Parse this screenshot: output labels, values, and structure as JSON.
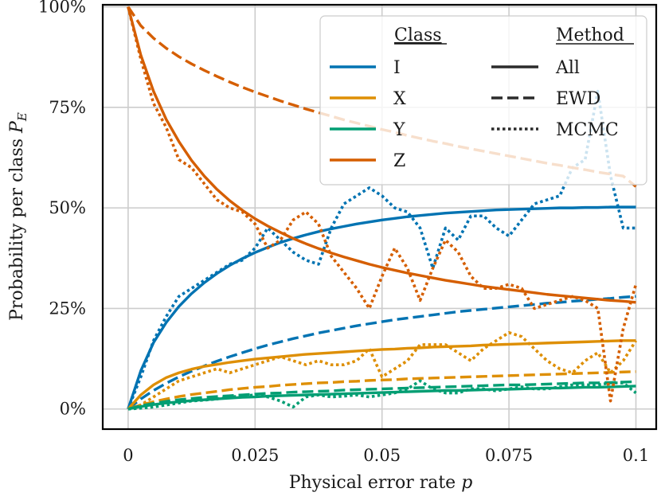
{
  "chart_data": {
    "type": "line",
    "xlabel_text": "Physical error rate ",
    "xlabel_var": "p",
    "ylabel_text": "Probability per class ",
    "ylabel_var": "P",
    "ylabel_sub": "E",
    "xlim": [
      -0.005,
      0.104
    ],
    "ylim": [
      -5,
      100.5
    ],
    "x_ticks": [
      0,
      0.025,
      0.05,
      0.075,
      0.1
    ],
    "x_tick_labels": [
      "0",
      "0.025",
      "0.05",
      "0.075",
      "0.1"
    ],
    "y_ticks": [
      0,
      25,
      50,
      75,
      100
    ],
    "y_tick_labels": [
      "0%",
      "25%",
      "50%",
      "75%",
      "100%"
    ],
    "grid": true,
    "legend_position": "top-right",
    "legend": {
      "class_title": "Class",
      "method_title": "Method",
      "classes": [
        {
          "label": "I",
          "color": "#0173b2"
        },
        {
          "label": "X",
          "color": "#de8f05"
        },
        {
          "label": "Y",
          "color": "#029e73"
        },
        {
          "label": "Z",
          "color": "#d55e00"
        }
      ],
      "methods": [
        {
          "label": "All",
          "style": "solid"
        },
        {
          "label": "EWD",
          "style": "dashed"
        },
        {
          "label": "MCMC",
          "style": "dotted"
        }
      ]
    },
    "x": [
      0,
      0.0025,
      0.005,
      0.0075,
      0.01,
      0.0125,
      0.015,
      0.0175,
      0.02,
      0.0225,
      0.025,
      0.0275,
      0.03,
      0.0325,
      0.035,
      0.0375,
      0.04,
      0.0425,
      0.045,
      0.0475,
      0.05,
      0.0525,
      0.055,
      0.0575,
      0.06,
      0.0625,
      0.065,
      0.0675,
      0.07,
      0.0725,
      0.075,
      0.0775,
      0.08,
      0.0825,
      0.085,
      0.0875,
      0.09,
      0.0925,
      0.095,
      0.0975,
      0.1
    ],
    "series": [
      {
        "name": "I",
        "method": "All",
        "color": "#0173b2",
        "style": "solid",
        "values": [
          0,
          9.5,
          16.5,
          21.5,
          25.5,
          28.7,
          31.4,
          33.7,
          35.7,
          37.4,
          38.9,
          40.2,
          41.4,
          42.4,
          43.3,
          44.1,
          44.8,
          45.4,
          46.0,
          46.5,
          47.0,
          47.4,
          47.8,
          48.1,
          48.4,
          48.7,
          48.9,
          49.1,
          49.3,
          49.5,
          49.6,
          49.7,
          49.8,
          49.9,
          50.0,
          50.0,
          50.1,
          50.1,
          50.2,
          50.2,
          50.2
        ]
      },
      {
        "name": "I",
        "method": "EWD",
        "color": "#0173b2",
        "style": "dashed",
        "values": [
          0,
          2.5,
          4.6,
          6.4,
          8.0,
          9.4,
          10.7,
          11.9,
          13.0,
          14.0,
          15.0,
          15.9,
          16.7,
          17.5,
          18.2,
          18.9,
          19.5,
          20.1,
          20.7,
          21.2,
          21.7,
          22.2,
          22.6,
          23.0,
          23.4,
          23.8,
          24.2,
          24.5,
          24.8,
          25.1,
          25.4,
          25.7,
          26.0,
          26.3,
          26.5,
          26.8,
          27.0,
          27.3,
          27.5,
          27.8,
          28.0
        ]
      },
      {
        "name": "I",
        "method": "MCMC",
        "color": "#0173b2",
        "style": "dotted",
        "values": [
          0,
          8,
          17,
          23,
          28,
          30,
          32,
          34,
          36,
          37,
          40,
          45,
          42,
          39,
          37,
          36,
          45,
          51,
          53,
          55,
          53,
          50,
          49,
          45,
          35,
          45,
          42,
          48,
          48,
          45,
          43,
          47,
          51,
          52,
          53,
          60,
          62,
          79,
          58,
          45,
          45
        ]
      },
      {
        "name": "X",
        "method": "All",
        "color": "#de8f05",
        "style": "solid",
        "values": [
          0,
          3.5,
          6.0,
          7.8,
          9.0,
          9.9,
          10.6,
          11.1,
          11.6,
          12.0,
          12.4,
          12.7,
          13.0,
          13.3,
          13.6,
          13.8,
          14.0,
          14.2,
          14.4,
          14.6,
          14.8,
          14.9,
          15.1,
          15.2,
          15.4,
          15.5,
          15.6,
          15.7,
          15.9,
          16.0,
          16.1,
          16.2,
          16.3,
          16.4,
          16.5,
          16.6,
          16.7,
          16.8,
          16.9,
          17.0,
          17.0
        ]
      },
      {
        "name": "X",
        "method": "EWD",
        "color": "#de8f05",
        "style": "dashed",
        "values": [
          0,
          1.0,
          1.8,
          2.5,
          3.1,
          3.6,
          4.0,
          4.4,
          4.8,
          5.1,
          5.4,
          5.6,
          5.9,
          6.1,
          6.3,
          6.5,
          6.6,
          6.8,
          6.9,
          7.1,
          7.2,
          7.3,
          7.5,
          7.6,
          7.7,
          7.8,
          7.9,
          8.0,
          8.1,
          8.2,
          8.3,
          8.4,
          8.5,
          8.6,
          8.7,
          8.8,
          8.9,
          9.0,
          9.1,
          9.2,
          9.3
        ]
      },
      {
        "name": "X",
        "method": "MCMC",
        "color": "#de8f05",
        "style": "dotted",
        "values": [
          0,
          1,
          3,
          5,
          7,
          8,
          9,
          10,
          9,
          10,
          11,
          12,
          13,
          12,
          11,
          12,
          11,
          11,
          12,
          15,
          8,
          10,
          12,
          16,
          16,
          16,
          14,
          12,
          15,
          17,
          19,
          18,
          15,
          12,
          10,
          9,
          12,
          14,
          9,
          12,
          17
        ]
      },
      {
        "name": "Y",
        "method": "All",
        "color": "#029e73",
        "style": "solid",
        "values": [
          0,
          0.6,
          1.1,
          1.5,
          1.8,
          2.1,
          2.3,
          2.5,
          2.7,
          2.9,
          3.0,
          3.2,
          3.3,
          3.4,
          3.5,
          3.6,
          3.7,
          3.8,
          3.9,
          4.0,
          4.1,
          4.2,
          4.3,
          4.4,
          4.5,
          4.6,
          4.6,
          4.7,
          4.8,
          4.9,
          4.9,
          5.0,
          5.1,
          5.2,
          5.2,
          5.3,
          5.4,
          5.4,
          5.5,
          5.6,
          5.7
        ]
      },
      {
        "name": "Y",
        "method": "EWD",
        "color": "#029e73",
        "style": "dashed",
        "values": [
          0,
          0.8,
          1.4,
          1.9,
          2.3,
          2.6,
          2.9,
          3.1,
          3.3,
          3.5,
          3.7,
          3.9,
          4.0,
          4.2,
          4.3,
          4.4,
          4.5,
          4.7,
          4.8,
          4.9,
          5.0,
          5.1,
          5.2,
          5.3,
          5.4,
          5.5,
          5.6,
          5.7,
          5.8,
          5.9,
          6.0,
          6.0,
          6.1,
          6.2,
          6.3,
          6.4,
          6.5,
          6.5,
          6.6,
          6.7,
          6.8
        ]
      },
      {
        "name": "Y",
        "method": "MCMC",
        "color": "#029e73",
        "style": "dotted",
        "values": [
          0,
          0.2,
          0.5,
          1,
          1.5,
          2,
          2.2,
          2.5,
          3,
          3.2,
          3.5,
          3,
          2,
          0.5,
          3,
          3.5,
          3,
          3.2,
          3.5,
          3,
          3.5,
          4,
          5,
          7,
          5,
          4,
          4,
          5,
          5,
          4.5,
          5,
          5.5,
          5,
          5,
          5.5,
          6,
          6,
          6,
          6.5,
          6.5,
          4
        ]
      },
      {
        "name": "Z",
        "method": "All",
        "color": "#d55e00",
        "style": "solid",
        "values": [
          100,
          88,
          79,
          72,
          66.5,
          61.8,
          57.9,
          54.6,
          51.8,
          49.4,
          47.3,
          45.5,
          43.9,
          42.4,
          41.1,
          39.9,
          38.8,
          37.8,
          36.9,
          36.0,
          35.2,
          34.5,
          33.8,
          33.2,
          32.6,
          32.0,
          31.5,
          31.0,
          30.5,
          30.1,
          29.7,
          29.3,
          28.9,
          28.5,
          28.2,
          27.9,
          27.6,
          27.3,
          27.0,
          26.8,
          26.5
        ]
      },
      {
        "name": "Z",
        "method": "EWD",
        "color": "#d55e00",
        "style": "dashed",
        "values": [
          100,
          95.3,
          92.2,
          89.7,
          87.6,
          85.8,
          84.2,
          82.7,
          81.3,
          80.0,
          78.8,
          77.7,
          76.6,
          75.6,
          74.6,
          73.7,
          72.8,
          71.9,
          71.1,
          70.3,
          69.5,
          68.8,
          68.0,
          67.3,
          66.6,
          66.0,
          65.3,
          64.7,
          64.1,
          63.5,
          62.9,
          62.3,
          61.7,
          61.1,
          60.6,
          60.0,
          59.5,
          58.9,
          58.4,
          57.9,
          55.3
        ]
      },
      {
        "name": "Z",
        "method": "MCMC",
        "color": "#d55e00",
        "style": "dotted",
        "values": [
          100,
          87,
          76,
          70,
          62,
          60,
          56,
          52,
          50,
          49,
          46,
          40,
          42,
          47,
          49,
          46,
          38,
          34,
          30,
          25,
          33,
          40,
          35,
          27,
          35,
          42,
          39,
          33,
          30,
          30,
          31,
          30,
          25,
          26,
          27,
          28,
          27,
          25,
          2,
          20,
          31
        ]
      }
    ]
  }
}
